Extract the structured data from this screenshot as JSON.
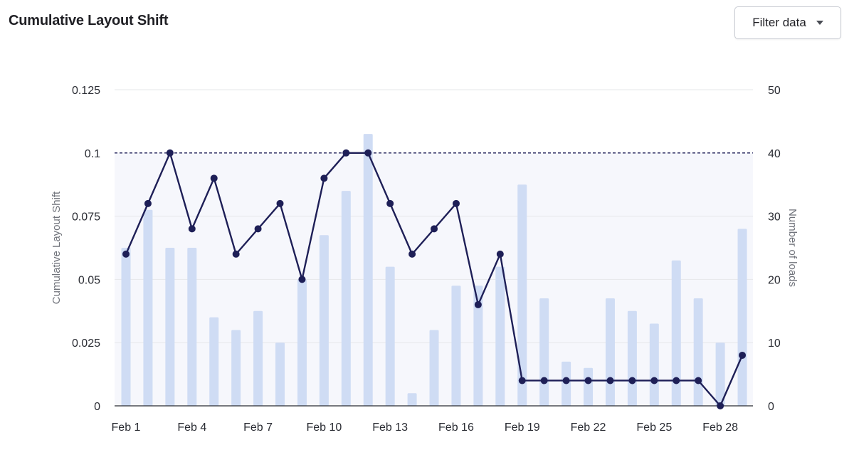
{
  "header": {
    "title": "Cumulative Layout Shift",
    "filter_label": "Filter data",
    "filter_icon": "chevron-down-icon"
  },
  "colors": {
    "line": "#1e1f57",
    "bars": "#cfdcf4",
    "threshold_zone": "#f6f7fc",
    "grid": "#e6e7ea",
    "axis": "#2a2c33"
  },
  "chart_data": {
    "type": "bar+line",
    "title": "Cumulative Layout Shift",
    "categories": [
      "Feb 1",
      "Feb 2",
      "Feb 3",
      "Feb 4",
      "Feb 5",
      "Feb 6",
      "Feb 7",
      "Feb 8",
      "Feb 9",
      "Feb 10",
      "Feb 11",
      "Feb 12",
      "Feb 13",
      "Feb 14",
      "Feb 15",
      "Feb 16",
      "Feb 17",
      "Feb 18",
      "Feb 19",
      "Feb 20",
      "Feb 21",
      "Feb 22",
      "Feb 23",
      "Feb 24",
      "Feb 25",
      "Feb 26",
      "Feb 27",
      "Feb 28",
      "Feb 29"
    ],
    "x_tick_labels": [
      "Feb 1",
      "Feb 4",
      "Feb 7",
      "Feb 10",
      "Feb 13",
      "Feb 16",
      "Feb 19",
      "Feb 22",
      "Feb 25",
      "Feb 28"
    ],
    "x_tick_indices": [
      0,
      3,
      6,
      9,
      12,
      15,
      18,
      21,
      24,
      27
    ],
    "series": [
      {
        "name": "Cumulative Layout Shift",
        "kind": "line",
        "axis": "left",
        "values": [
          0.06,
          0.08,
          0.1,
          0.07,
          0.09,
          0.06,
          0.07,
          0.08,
          0.05,
          0.09,
          0.1,
          0.1,
          0.08,
          0.06,
          0.07,
          0.08,
          0.04,
          0.06,
          0.01,
          0.01,
          0.01,
          0.01,
          0.01,
          0.01,
          0.01,
          0.01,
          0.01,
          0.0,
          0.02
        ]
      },
      {
        "name": "Number of loads",
        "kind": "bar",
        "axis": "right",
        "values": [
          25,
          31,
          25,
          25,
          14,
          12,
          15,
          10,
          20,
          27,
          34,
          43,
          22,
          2,
          12,
          19,
          19,
          22,
          35,
          17,
          7,
          6,
          17,
          15,
          13,
          23,
          17,
          10,
          28
        ]
      }
    ],
    "left_axis": {
      "label": "Cumulative Layout Shift",
      "range": [
        0,
        0.125
      ],
      "ticks": [
        "0",
        "0.025",
        "0.05",
        "0.075",
        "0.1",
        "0.125"
      ],
      "tick_values": [
        0,
        0.025,
        0.05,
        0.075,
        0.1,
        0.125
      ]
    },
    "right_axis": {
      "label": "Number of loads",
      "range": [
        0,
        50
      ],
      "ticks": [
        "0",
        "10",
        "20",
        "30",
        "40",
        "50"
      ],
      "tick_values": [
        0,
        10,
        20,
        30,
        40,
        50
      ]
    },
    "threshold": 0.1,
    "grid": true
  }
}
